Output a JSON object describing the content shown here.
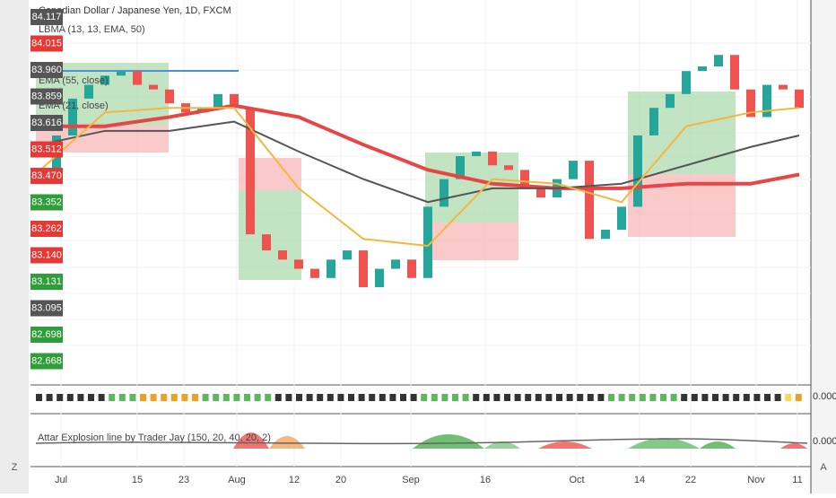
{
  "chart_data": {
    "type": "candlestick",
    "title": "Canadian Dollar / Japanese Yen, 1D, FXCM",
    "legend": [
      "LBMA (13, 13, EMA, 50)",
      "EMA (55, close)",
      "EMA (21, close)"
    ],
    "panel_labels": [
      "Attar Explosion line by Trader Jay (150, 20, 40, 20, 2)"
    ],
    "panel_values": [
      "0.000",
      "0.000"
    ],
    "corner_buttons": [
      "Z",
      "A"
    ],
    "price_labels": [
      {
        "label": "84.117",
        "color": "#555555"
      },
      {
        "label": "84.015",
        "color": "#e53935"
      },
      {
        "label": "83.960",
        "color": "#555555"
      },
      {
        "label": "83.859",
        "color": "#555555"
      },
      {
        "label": "83.616",
        "color": "#555555"
      },
      {
        "label": "83.512",
        "color": "#e53935"
      },
      {
        "label": "83.470",
        "color": "#e53935"
      },
      {
        "label": "83.352",
        "color": "#2e9d3a"
      },
      {
        "label": "83.262",
        "color": "#e53935"
      },
      {
        "label": "83.140",
        "color": "#e53935"
      },
      {
        "label": "83.131",
        "color": "#2e9d3a"
      },
      {
        "label": "83.095",
        "color": "#555555"
      },
      {
        "label": "82.698",
        "color": "#2e9d3a"
      },
      {
        "label": "82.668",
        "color": "#2e9d3a"
      }
    ],
    "time_labels": [
      "Jul",
      "15",
      "23",
      "Aug",
      "12",
      "20",
      "Sep",
      "16",
      "Oct",
      "14",
      "22",
      "Nov",
      "11"
    ],
    "ylim": [
      82.6,
      84.2
    ],
    "first_open": 83.45,
    "up_color": "#26a69a",
    "down_color": "#ef5350",
    "close": [
      83.5,
      83.65,
      83.81,
      83.87,
      83.91,
      83.93,
      83.87,
      83.85,
      83.79,
      83.75,
      83.77,
      83.83,
      83.77,
      83.22,
      83.15,
      83.11,
      83.07,
      83.03,
      83.11,
      83.15,
      82.99,
      83.07,
      83.11,
      83.03,
      83.34,
      83.46,
      83.56,
      83.58,
      83.52,
      83.5,
      83.42,
      83.38,
      83.46,
      83.54,
      83.2,
      83.24,
      83.34,
      83.65,
      83.77,
      83.83,
      83.93,
      83.95,
      84.0,
      83.85,
      83.73,
      83.87,
      83.85,
      83.77
    ],
    "line_index": [
      0,
      4,
      8,
      12,
      16,
      20,
      24,
      28,
      32,
      36,
      40,
      44,
      47
    ],
    "series": [
      {
        "name": "LBMA",
        "color": "#e84545",
        "values": [
          83.69,
          83.69,
          83.73,
          83.78,
          83.73,
          83.61,
          83.5,
          83.44,
          83.42,
          83.42,
          83.44,
          83.44,
          83.48
        ]
      },
      {
        "name": "EMA 55",
        "color": "#555555",
        "values": [
          83.61,
          83.67,
          83.67,
          83.71,
          83.58,
          83.46,
          83.36,
          83.42,
          83.42,
          83.44,
          83.52,
          83.6,
          83.65
        ]
      },
      {
        "name": "EMA 21",
        "color": "#f5b73b",
        "values": [
          83.5,
          83.75,
          83.77,
          83.77,
          83.42,
          83.2,
          83.17,
          83.46,
          83.44,
          83.36,
          83.69,
          83.75,
          83.77
        ]
      }
    ]
  }
}
